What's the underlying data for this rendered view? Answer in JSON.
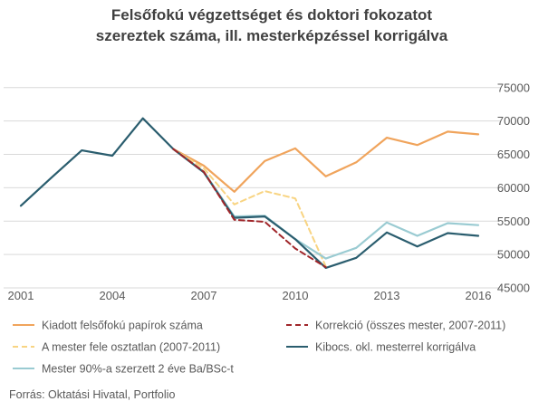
{
  "chart_data": {
    "type": "line",
    "title_lines": [
      "Felsőfokú végzettséget és doktori fokozatot",
      "szereztek száma, ill. mesterképzéssel korrigálva"
    ],
    "x_tick_labels": [
      "2001",
      "2004",
      "2007",
      "2010",
      "2013",
      "2016"
    ],
    "y_tick_labels": [
      "75000",
      "70000",
      "65000",
      "60000",
      "55000",
      "50000",
      "45000"
    ],
    "y_ticks": [
      75000,
      70000,
      65000,
      60000,
      55000,
      50000,
      45000
    ],
    "x_ticks": [
      2001,
      2004,
      2007,
      2010,
      2013,
      2016
    ],
    "xlim": [
      2001,
      2016
    ],
    "ylim": [
      45000,
      77000
    ],
    "grid": "horizontal",
    "series": [
      {
        "name": "Kiadott felsőfokú papírok száma",
        "color": "#F0A45C",
        "dash": "solid",
        "x": [
          2006,
          2007,
          2008,
          2009,
          2010,
          2011,
          2012,
          2013,
          2014,
          2015,
          2016
        ],
        "values": [
          65800,
          63300,
          59400,
          64000,
          65900,
          61700,
          63800,
          67500,
          66400,
          68400,
          68000
        ]
      },
      {
        "name": "Korrekció (összes mester, 2007-2011)",
        "color": "#A0262A",
        "dash": "dashed",
        "x": [
          2006,
          2007,
          2008,
          2009,
          2010,
          2011
        ],
        "values": [
          65800,
          62400,
          55200,
          54900,
          50900,
          48100
        ]
      },
      {
        "name": "A mester fele osztatlan (2007-2011)",
        "color": "#F8D482",
        "dash": "dashed",
        "x": [
          2006,
          2007,
          2008,
          2009,
          2010,
          2011
        ],
        "values": [
          65800,
          62900,
          57500,
          59500,
          58400,
          48200
        ]
      },
      {
        "name": "Kibocs. okl. mesterrel korrigálva",
        "color": "#2A5D6E",
        "dash": "solid",
        "x": [
          2001,
          2002,
          2003,
          2004,
          2005,
          2006,
          2007,
          2008,
          2009,
          2010,
          2011,
          2012,
          2013,
          2014,
          2015,
          2016
        ],
        "values": [
          57300,
          61500,
          65600,
          64800,
          70400,
          65800,
          62300,
          55500,
          55700,
          52300,
          48000,
          49500,
          53300,
          51200,
          53200,
          52800
        ]
      },
      {
        "name": "Mester 90%-a szerzett 2 éve Ba/BSc-t",
        "color": "#9ACBD2",
        "dash": "solid",
        "x": [
          2006,
          2007,
          2008,
          2009,
          2010,
          2011,
          2012,
          2013,
          2014,
          2015,
          2016
        ],
        "values": [
          65800,
          62400,
          55700,
          55800,
          52300,
          49400,
          51000,
          54800,
          52800,
          54700,
          54400
        ]
      }
    ],
    "legend": {
      "placement": "bottom",
      "entries": [
        "Kiadott felsőfokú papírok száma",
        "Korrekció (összes mester, 2007-2011)",
        "A mester fele osztatlan (2007-2011)",
        "Kibocs. okl. mesterrel korrigálva",
        "Mester 90%-a szerzett 2 éve Ba/BSc-t"
      ]
    },
    "source": "Forrás: Oktatási Hivatal, Portfolio"
  }
}
